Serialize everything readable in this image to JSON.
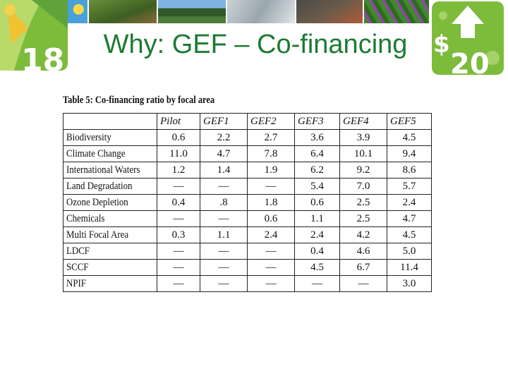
{
  "header": {
    "title": "Why: GEF – Co-financing",
    "badge_left_text": "18",
    "badge_right_text": "20",
    "badge_right_symbol": "$",
    "colors": {
      "title": "#1e7a33",
      "badge_green": "#7dbb3b"
    }
  },
  "table": {
    "caption": "Table 5: Co-financing ratio by focal area",
    "columns": [
      "Pilot",
      "GEF1",
      "GEF2",
      "GEF3",
      "GEF4",
      "GEF5"
    ],
    "rows": [
      {
        "name": "Biodiversity",
        "values": [
          "0.6",
          "2.2",
          "2.7",
          "3.6",
          "3.9",
          "4.5"
        ]
      },
      {
        "name": "Climate Change",
        "values": [
          "11.0",
          "4.7",
          "7.8",
          "6.4",
          "10.1",
          "9.4"
        ]
      },
      {
        "name": "International Waters",
        "values": [
          "1.2",
          "1.4",
          "1.9",
          "6.2",
          "9.2",
          "8.6"
        ]
      },
      {
        "name": "Land Degradation",
        "values": [
          "—",
          "—",
          "—",
          "5.4",
          "7.0",
          "5.7"
        ]
      },
      {
        "name": "Ozone Depletion",
        "values": [
          "0.4",
          ".8",
          "1.8",
          "0.6",
          "2.5",
          "2.4"
        ]
      },
      {
        "name": "Chemicals",
        "values": [
          "—",
          "—",
          "0.6",
          "1.1",
          "2.5",
          "4.7"
        ]
      },
      {
        "name": "Multi Focal Area",
        "values": [
          "0.3",
          "1.1",
          "2.4",
          "2.4",
          "4.2",
          "4.5"
        ]
      },
      {
        "name": "LDCF",
        "values": [
          "—",
          "—",
          "—",
          "0.4",
          "4.6",
          "5.0"
        ]
      },
      {
        "name": "SCCF",
        "values": [
          "—",
          "—",
          "—",
          "4.5",
          "6.7",
          "11.4"
        ]
      },
      {
        "name": "NPIF",
        "values": [
          "—",
          "—",
          "—",
          "—",
          "—",
          "3.0"
        ]
      }
    ]
  }
}
